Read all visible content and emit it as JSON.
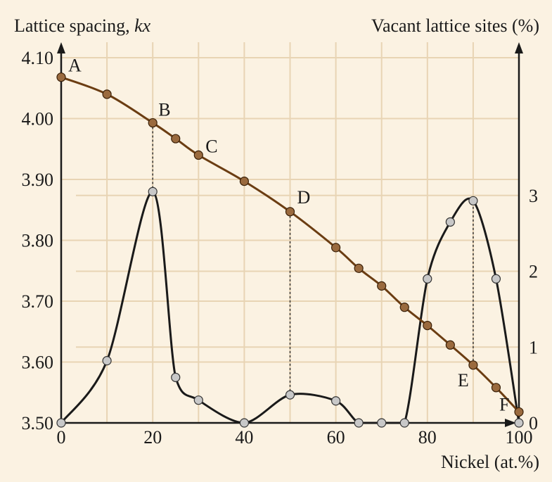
{
  "chart_data": {
    "type": "line",
    "xlabel": "Nickel (at.%)",
    "ylabel_left": "Lattice spacing, ",
    "ylabel_left_italic": "kx",
    "ylabel_right": "Vacant lattice sites (%)",
    "xlim": [
      0,
      100
    ],
    "ylim_left": [
      3.5,
      4.1
    ],
    "ylim_right": [
      0,
      4
    ],
    "x_ticks": [
      "0",
      "20",
      "40",
      "60",
      "80",
      "100"
    ],
    "y_left_ticks": [
      "3.50",
      "3.60",
      "3.70",
      "3.80",
      "3.90",
      "4.00",
      "4.10"
    ],
    "y_right_ticks": [
      "0",
      "1",
      "2",
      "3"
    ],
    "grid": true,
    "colors": {
      "background": "#fbf2e2",
      "grid": "#e8d4b4",
      "lattice_line": "#6b3d12",
      "lattice_marker": "#9a6a3e",
      "vacancy_line": "#1a1a1a",
      "vacancy_marker": "#c8c8c8"
    },
    "series": [
      {
        "axis": "left",
        "x": [
          0,
          10,
          20,
          25,
          30,
          40,
          50,
          60,
          65,
          70,
          75,
          80,
          85,
          90,
          95,
          100
        ],
        "y": [
          4.068,
          4.04,
          3.993,
          3.967,
          3.94,
          3.897,
          3.847,
          3.788,
          3.754,
          3.725,
          3.69,
          3.66,
          3.628,
          3.595,
          3.558,
          3.518
        ]
      },
      {
        "axis": "right",
        "x": [
          0,
          10,
          20,
          25,
          30,
          40,
          50,
          60,
          65,
          70,
          75,
          80,
          85,
          90,
          95,
          100
        ],
        "y": [
          0,
          0.82,
          3.05,
          0.6,
          0.3,
          0,
          0.37,
          0.29,
          0,
          0,
          0,
          1.9,
          2.65,
          2.93,
          1.9,
          0
        ]
      }
    ],
    "annotations": [
      {
        "label": "A",
        "x": 0,
        "y": 4.068
      },
      {
        "label": "B",
        "x": 20,
        "y": 3.993
      },
      {
        "label": "C",
        "x": 30,
        "y": 3.94
      },
      {
        "label": "D",
        "x": 50,
        "y": 3.847
      },
      {
        "label": "E",
        "x": 90,
        "y": 3.595
      },
      {
        "label": "F",
        "x": 100,
        "y": 3.518
      }
    ],
    "dashed_lines_x": [
      20,
      50,
      90
    ]
  }
}
